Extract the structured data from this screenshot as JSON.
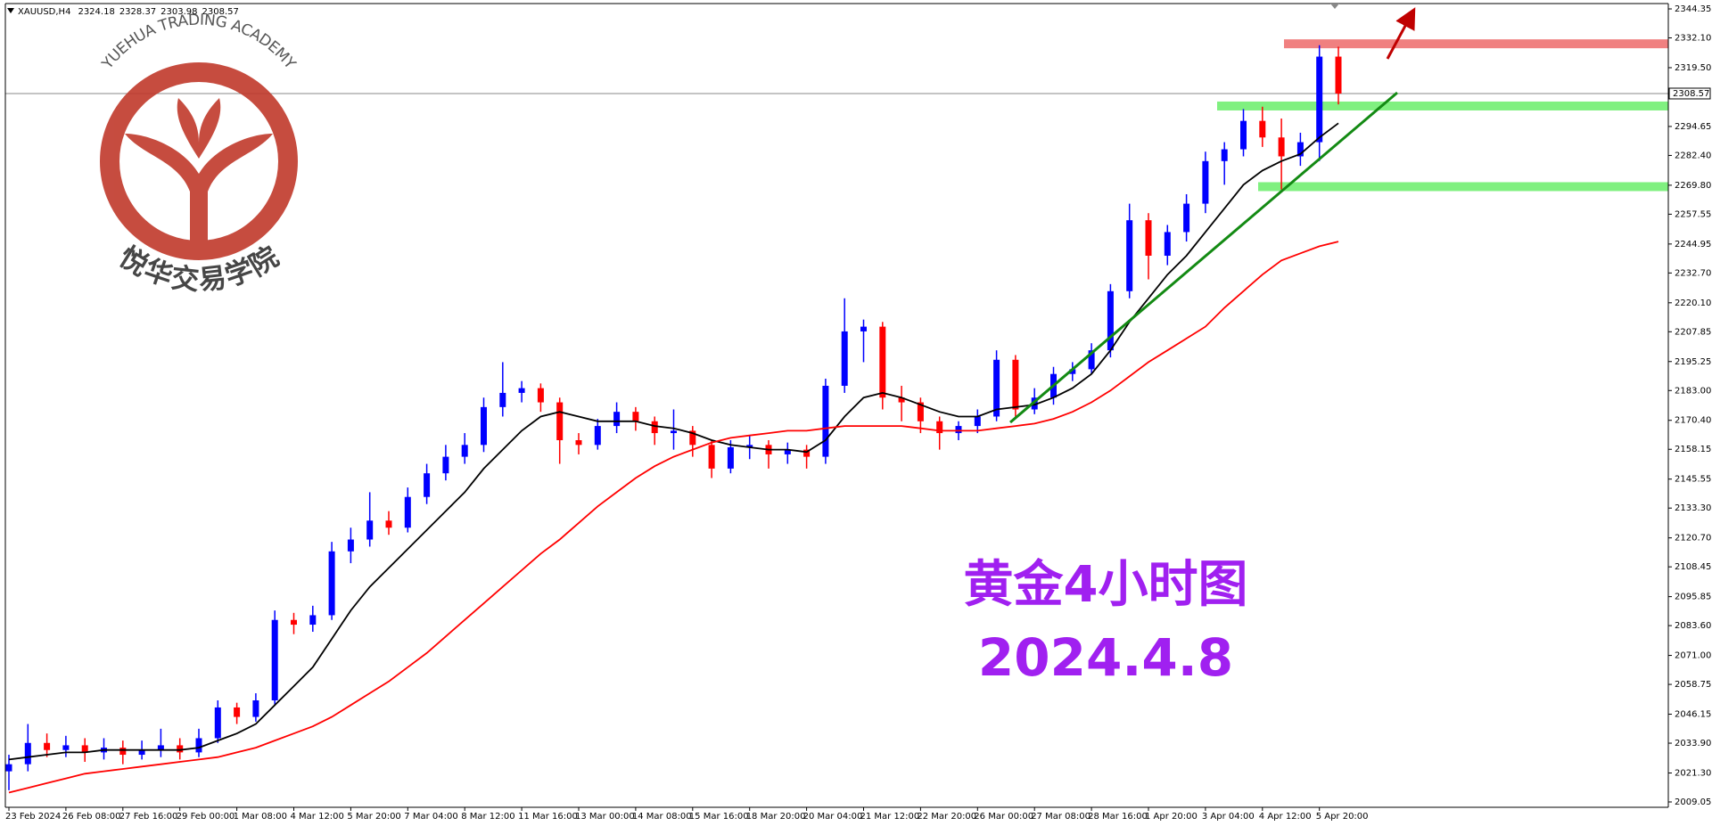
{
  "chart_data": {
    "type": "candlestick",
    "header": {
      "symbol": "XAUUSD,H4",
      "ohlc": [
        2324.18,
        2328.37,
        2303.98,
        2308.57
      ]
    },
    "logo": {
      "text_en": "YUEHUA TRADING ACADEMY",
      "text_cn": "悦华交易学院"
    },
    "annotations": [
      {
        "text": "黄金4小时图",
        "color": "#a020f0"
      },
      {
        "text": "2024.4.8",
        "color": "#a020f0"
      }
    ],
    "categories": [
      "23 Feb 2024",
      null,
      null,
      "26 Feb 08:00",
      null,
      null,
      "27 Feb 16:00",
      null,
      null,
      "29 Feb 00:00",
      null,
      null,
      "1 Mar 08:00",
      null,
      null,
      "4 Mar 12:00",
      null,
      null,
      "5 Mar 20:00",
      null,
      null,
      "7 Mar 04:00",
      null,
      null,
      "8 Mar 12:00",
      null,
      null,
      "11 Mar 16:00",
      null,
      null,
      "13 Mar 00:00",
      null,
      null,
      "14 Mar 08:00",
      null,
      null,
      "15 Mar 16:00",
      null,
      null,
      "18 Mar 20:00",
      null,
      null,
      "20 Mar 04:00",
      null,
      null,
      "21 Mar 12:00",
      null,
      null,
      "22 Mar 20:00",
      null,
      null,
      "26 Mar 00:00",
      null,
      null,
      "27 Mar 08:00",
      null,
      null,
      "28 Mar 16:00",
      null,
      null,
      "1 Apr 20:00",
      null,
      null,
      "3 Apr 04:00",
      null,
      null,
      "4 Apr 12:00",
      null,
      null,
      "5 Apr 20:00",
      null
    ],
    "open": [
      2022,
      2025,
      2034,
      2031,
      2033,
      2030,
      2032,
      2029,
      2031,
      2033,
      2030,
      2036,
      2049,
      2045,
      2052,
      2086,
      2084,
      2088,
      2115,
      2120,
      2128,
      2125,
      2138,
      2148,
      2155,
      2160,
      2176,
      2182,
      2184,
      2178,
      2162,
      2160,
      2168,
      2174,
      2170,
      2165,
      2166,
      2160,
      2150,
      2159,
      2160,
      2156,
      2158,
      2155,
      2185,
      2208,
      2210,
      2180,
      2178,
      2170,
      2165,
      2168,
      2172,
      2196,
      2175,
      2180,
      2190,
      2192,
      2200,
      2225,
      2255,
      2240,
      2250,
      2262,
      2280,
      2285,
      2297,
      2290,
      2282,
      2288,
      2324.18
    ],
    "high": [
      2029,
      2042,
      2038,
      2037,
      2036,
      2036,
      2035,
      2035,
      2040,
      2036,
      2040,
      2052,
      2051,
      2055,
      2090,
      2089,
      2092,
      2119,
      2125,
      2140,
      2132,
      2142,
      2152,
      2160,
      2165,
      2180,
      2195,
      2187,
      2186,
      2180,
      2165,
      2171,
      2178,
      2176,
      2172,
      2175,
      2168,
      2162,
      2162,
      2164,
      2162,
      2161,
      2160,
      2188,
      2222,
      2213,
      2212,
      2185,
      2180,
      2172,
      2170,
      2175,
      2200,
      2198,
      2184,
      2193,
      2195,
      2203,
      2228,
      2262,
      2258,
      2253,
      2266,
      2284,
      2288,
      2302,
      2303,
      2298,
      2292,
      2329,
      2328.37
    ],
    "low": [
      2014,
      2022,
      2028,
      2028,
      2026,
      2027,
      2025,
      2027,
      2028,
      2027,
      2028,
      2034,
      2042,
      2043,
      2050,
      2080,
      2081,
      2086,
      2110,
      2117,
      2122,
      2123,
      2135,
      2145,
      2152,
      2157,
      2172,
      2178,
      2174,
      2152,
      2156,
      2158,
      2165,
      2166,
      2160,
      2158,
      2155,
      2146,
      2148,
      2154,
      2150,
      2152,
      2150,
      2152,
      2182,
      2195,
      2175,
      2170,
      2165,
      2158,
      2162,
      2165,
      2170,
      2172,
      2173,
      2177,
      2187,
      2190,
      2197,
      2222,
      2230,
      2236,
      2246,
      2258,
      2270,
      2282,
      2286,
      2268,
      2278,
      2280,
      2303.98
    ],
    "close": [
      2025,
      2034,
      2031,
      2033,
      2030,
      2032,
      2029,
      2031,
      2033,
      2030,
      2036,
      2049,
      2045,
      2052,
      2086,
      2084,
      2088,
      2115,
      2120,
      2128,
      2125,
      2138,
      2148,
      2155,
      2160,
      2176,
      2182,
      2184,
      2178,
      2162,
      2160,
      2168,
      2174,
      2170,
      2165,
      2166,
      2160,
      2150,
      2159,
      2160,
      2156,
      2158,
      2155,
      2185,
      2208,
      2210,
      2180,
      2178,
      2170,
      2165,
      2168,
      2172,
      2196,
      2175,
      2180,
      2190,
      2192,
      2200,
      2225,
      2255,
      2240,
      2250,
      2262,
      2280,
      2285,
      2297,
      2290,
      2282,
      2288,
      2324.18,
      2308.57
    ],
    "up_color": "#0000ff",
    "down_color": "#ff0000",
    "series": [
      {
        "color": "#000000",
        "values": [
          2027,
          2028,
          2029,
          2030,
          2030,
          2031,
          2031,
          2031,
          2031,
          2031,
          2032,
          2035,
          2038,
          2042,
          2050,
          2058,
          2066,
          2078,
          2090,
          2100,
          2108,
          2116,
          2124,
          2132,
          2140,
          2150,
          2158,
          2166,
          2172,
          2174,
          2172,
          2170,
          2170,
          2170,
          2168,
          2167,
          2165,
          2162,
          2160,
          2159,
          2158,
          2158,
          2157,
          2162,
          2172,
          2180,
          2182,
          2180,
          2177,
          2174,
          2172,
          2172,
          2175,
          2176,
          2177,
          2180,
          2184,
          2190,
          2200,
          2212,
          2222,
          2232,
          2240,
          2250,
          2260,
          2270,
          2276,
          2280,
          2283,
          2290,
          2296
        ]
      },
      {
        "color": "#ff0000",
        "values": [
          2013,
          2015,
          2017,
          2019,
          2021,
          2022,
          2023,
          2024,
          2025,
          2026,
          2027,
          2028,
          2030,
          2032,
          2035,
          2038,
          2041,
          2045,
          2050,
          2055,
          2060,
          2066,
          2072,
          2079,
          2086,
          2093,
          2100,
          2107,
          2114,
          2120,
          2127,
          2134,
          2140,
          2146,
          2151,
          2155,
          2158,
          2161,
          2163,
          2164,
          2165,
          2166,
          2166,
          2167,
          2168,
          2168,
          2168,
          2168,
          2167,
          2166,
          2166,
          2166,
          2167,
          2168,
          2169,
          2171,
          2174,
          2178,
          2183,
          2189,
          2195,
          2200,
          2205,
          2210,
          2218,
          2225,
          2232,
          2238,
          2241,
          2244,
          2246
        ]
      }
    ],
    "current_price": 2308.57,
    "zones": [
      {
        "value": 2329.6,
        "color": "#f08080"
      },
      {
        "value": 2303.3,
        "color": "#80f080"
      },
      {
        "value": 2269.2,
        "color": "#80f080"
      }
    ],
    "ylim": [
      2009.05,
      2344.35
    ],
    "yticks": [
      2344.35,
      {
        "value": 2332.1,
        "label": "2332.10"
      },
      {
        "value": 2319.5,
        "label": "2319.50"
      },
      2294.65,
      {
        "value": 2282.4,
        "label": "2282.40"
      },
      {
        "value": 2269.8,
        "label": "2269.80"
      },
      2257.55,
      2244.95,
      {
        "value": 2232.7,
        "label": "2232.70"
      },
      {
        "value": 2220.1,
        "label": "2220.10"
      },
      2207.85,
      2195.25,
      {
        "value": 2183,
        "label": "2183.00"
      },
      {
        "value": 2170.4,
        "label": "2170.40"
      },
      2158.15,
      2145.55,
      {
        "value": 2133.3,
        "label": "2133.30"
      },
      {
        "value": 2120.7,
        "label": "2120.70"
      },
      2108.45,
      2095.85,
      {
        "value": 2083.6,
        "label": "2083.60"
      },
      {
        "value": 2071,
        "label": "2071.00"
      },
      2058.75,
      2046.15,
      {
        "value": 2033.9,
        "label": "2033.90"
      },
      {
        "value": 2021.3,
        "label": "2021.30"
      },
      2009.05
    ],
    "grid": false
  }
}
